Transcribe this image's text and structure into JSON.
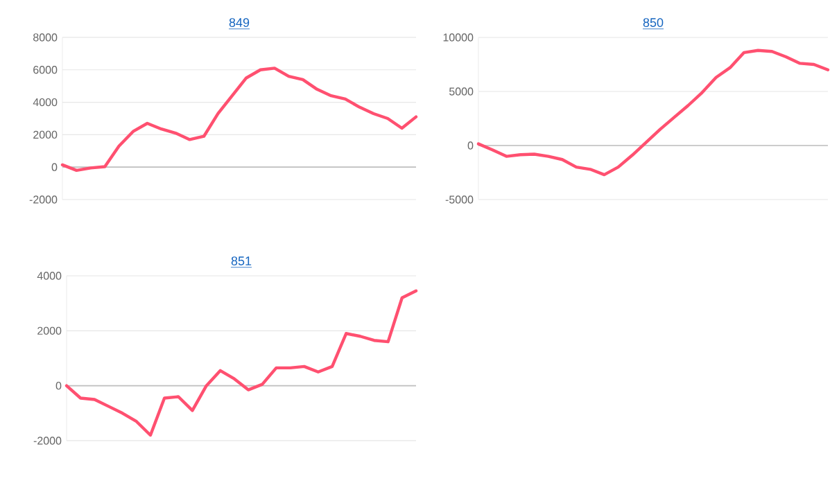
{
  "chart_data": [
    {
      "type": "line",
      "title": "849",
      "color": "#ff5070",
      "grid": "y",
      "tick_labels": "y",
      "ylim": [
        -2000,
        8000
      ],
      "yticks": [
        -2000,
        0,
        2000,
        4000,
        6000,
        8000
      ],
      "categories": [
        null,
        null,
        null,
        null,
        null,
        null,
        null,
        null,
        null,
        null,
        null,
        null,
        null,
        null,
        null,
        null,
        null,
        null,
        null,
        null,
        null,
        null,
        null,
        null,
        null,
        null
      ],
      "values": [
        140,
        -200,
        -50,
        30,
        1300,
        2200,
        2700,
        2350,
        2100,
        1700,
        1900,
        3300,
        4400,
        5500,
        6000,
        6100,
        5600,
        5400,
        4800,
        4400,
        4200,
        3700,
        3300,
        3000,
        2400,
        3100
      ]
    },
    {
      "type": "line",
      "title": "850",
      "color": "#ff5070",
      "grid": "y",
      "tick_labels": "y",
      "ylim": [
        -5000,
        10000
      ],
      "yticks": [
        -5000,
        0,
        5000,
        10000
      ],
      "categories": [
        null,
        null,
        null,
        null,
        null,
        null,
        null,
        null,
        null,
        null,
        null,
        null,
        null,
        null,
        null,
        null,
        null,
        null,
        null,
        null,
        null,
        null,
        null,
        null,
        null,
        null
      ],
      "values": [
        150,
        -400,
        -1000,
        -850,
        -800,
        -1000,
        -1300,
        -2000,
        -2200,
        -2700,
        -2000,
        -900,
        300,
        1500,
        2600,
        3700,
        4900,
        6300,
        7200,
        8600,
        8800,
        8700,
        8200,
        7600,
        7500,
        7000
      ]
    },
    {
      "type": "line",
      "title": "851",
      "color": "#ff5070",
      "grid": "y",
      "tick_labels": "y",
      "ylim": [
        -2000,
        4000
      ],
      "yticks": [
        -2000,
        0,
        2000,
        4000
      ],
      "categories": [
        null,
        null,
        null,
        null,
        null,
        null,
        null,
        null,
        null,
        null,
        null,
        null,
        null,
        null,
        null,
        null,
        null,
        null,
        null,
        null,
        null,
        null,
        null,
        null,
        null,
        null
      ],
      "values": [
        0,
        -450,
        -500,
        -750,
        -1000,
        -1300,
        -1800,
        -450,
        -400,
        -900,
        0,
        550,
        250,
        -150,
        50,
        650,
        650,
        700,
        500,
        700,
        1900,
        1800,
        1650,
        1600,
        3200,
        3450
      ]
    }
  ]
}
